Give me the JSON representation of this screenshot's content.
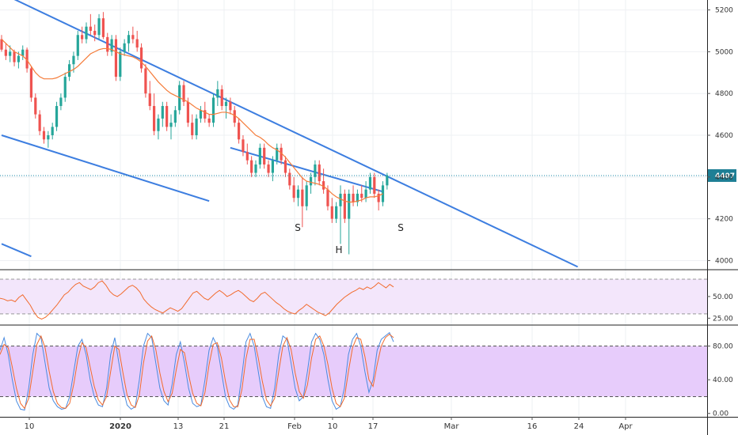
{
  "colors": {
    "up": "#26a69a",
    "down": "#ef5350",
    "trendline": "#3d7ee0",
    "ma": "#f57c3a",
    "rsi_line": "#f26b2d",
    "rsi_band": "#f3e6fb",
    "stoch_band": "#e7ccfb",
    "stoch_k": "#4a8be0",
    "stoch_d": "#f26b2d",
    "price_line": "#1a8aa8",
    "price_label_bg": "#1e7f95",
    "grid": "#eef0f3",
    "axis": "#555555"
  },
  "chart_data": [
    {
      "type": "candlestick",
      "title": "",
      "y_ticks": [
        "5200",
        "5000",
        "4800",
        "4600",
        "4400",
        "4200",
        "4000"
      ],
      "ylim": [
        3960,
        5240
      ],
      "last_price_label": "4407",
      "last_price": 4407,
      "x_ticks": [
        "10",
        "2020",
        "13",
        "21",
        "Feb",
        "10",
        "17",
        "Mar",
        "16",
        "24",
        "Apr"
      ],
      "bold_x_ticks": [
        "2020"
      ],
      "grid": true,
      "annotations": [
        "S",
        "H",
        "S"
      ],
      "candles": [
        [
          5060,
          5080,
          5000,
          5010
        ],
        [
          5010,
          5040,
          4960,
          4980
        ],
        [
          4980,
          5030,
          4950,
          5000
        ],
        [
          5000,
          5010,
          4930,
          4950
        ],
        [
          4950,
          5000,
          4920,
          4980
        ],
        [
          4980,
          5030,
          4960,
          5010
        ],
        [
          5010,
          5020,
          4900,
          4920
        ],
        [
          4920,
          4930,
          4760,
          4780
        ],
        [
          4780,
          4800,
          4680,
          4700
        ],
        [
          4700,
          4720,
          4600,
          4620
        ],
        [
          4620,
          4640,
          4560,
          4580
        ],
        [
          4580,
          4620,
          4540,
          4600
        ],
        [
          4600,
          4660,
          4580,
          4640
        ],
        [
          4640,
          4760,
          4620,
          4740
        ],
        [
          4740,
          4800,
          4720,
          4780
        ],
        [
          4780,
          4900,
          4760,
          4880
        ],
        [
          4880,
          4960,
          4860,
          4940
        ],
        [
          4940,
          5000,
          4900,
          4980
        ],
        [
          4980,
          5100,
          4960,
          5080
        ],
        [
          5080,
          5120,
          5040,
          5060
        ],
        [
          5060,
          5140,
          5040,
          5120
        ],
        [
          5120,
          5180,
          5080,
          5100
        ],
        [
          5100,
          5130,
          5050,
          5080
        ],
        [
          5080,
          5180,
          5060,
          5160
        ],
        [
          5160,
          5190,
          5060,
          5070
        ],
        [
          5070,
          5090,
          4980,
          5000
        ],
        [
          5000,
          5080,
          4980,
          5060
        ],
        [
          5060,
          5080,
          4860,
          4880
        ],
        [
          4880,
          5020,
          4860,
          5000
        ],
        [
          5000,
          5060,
          4980,
          5040
        ],
        [
          5040,
          5100,
          5000,
          5080
        ],
        [
          5080,
          5120,
          5040,
          5060
        ],
        [
          5060,
          5100,
          5000,
          5020
        ],
        [
          5020,
          5040,
          4900,
          4920
        ],
        [
          4920,
          4940,
          4780,
          4800
        ],
        [
          4800,
          4860,
          4720,
          4740
        ],
        [
          4740,
          4800,
          4600,
          4620
        ],
        [
          4620,
          4700,
          4580,
          4680
        ],
        [
          4680,
          4760,
          4640,
          4740
        ],
        [
          4740,
          4760,
          4620,
          4640
        ],
        [
          4640,
          4700,
          4580,
          4660
        ],
        [
          4660,
          4740,
          4640,
          4720
        ],
        [
          4720,
          4860,
          4700,
          4840
        ],
        [
          4840,
          4860,
          4740,
          4760
        ],
        [
          4760,
          4780,
          4640,
          4660
        ],
        [
          4660,
          4700,
          4580,
          4600
        ],
        [
          4600,
          4700,
          4580,
          4680
        ],
        [
          4680,
          4740,
          4660,
          4720
        ],
        [
          4720,
          4760,
          4660,
          4680
        ],
        [
          4680,
          4700,
          4640,
          4660
        ],
        [
          4660,
          4800,
          4640,
          4780
        ],
        [
          4780,
          4860,
          4740,
          4820
        ],
        [
          4820,
          4840,
          4720,
          4740
        ],
        [
          4740,
          4780,
          4680,
          4760
        ],
        [
          4760,
          4780,
          4700,
          4720
        ],
        [
          4720,
          4740,
          4640,
          4660
        ],
        [
          4660,
          4680,
          4560,
          4580
        ],
        [
          4580,
          4600,
          4500,
          4520
        ],
        [
          4520,
          4560,
          4460,
          4480
        ],
        [
          4480,
          4500,
          4400,
          4420
        ],
        [
          4420,
          4480,
          4400,
          4460
        ],
        [
          4460,
          4560,
          4440,
          4540
        ],
        [
          4540,
          4560,
          4440,
          4460
        ],
        [
          4460,
          4480,
          4400,
          4420
        ],
        [
          4420,
          4500,
          4380,
          4480
        ],
        [
          4480,
          4560,
          4460,
          4540
        ],
        [
          4540,
          4560,
          4460,
          4480
        ],
        [
          4480,
          4500,
          4400,
          4420
        ],
        [
          4420,
          4440,
          4340,
          4360
        ],
        [
          4360,
          4400,
          4280,
          4300
        ],
        [
          4300,
          4360,
          4260,
          4340
        ],
        [
          4340,
          4400,
          4160,
          4260
        ],
        [
          4260,
          4380,
          4240,
          4360
        ],
        [
          4360,
          4420,
          4320,
          4400
        ],
        [
          4400,
          4480,
          4360,
          4460
        ],
        [
          4460,
          4480,
          4360,
          4380
        ],
        [
          4380,
          4440,
          4320,
          4340
        ],
        [
          4340,
          4360,
          4240,
          4260
        ],
        [
          4260,
          4300,
          4180,
          4200
        ],
        [
          4200,
          4280,
          4180,
          4260
        ],
        [
          4260,
          4360,
          4080,
          4320
        ],
        [
          4320,
          4340,
          4180,
          4200
        ],
        [
          4200,
          4340,
          4030,
          4320
        ],
        [
          4320,
          4360,
          4260,
          4280
        ],
        [
          4280,
          4340,
          4260,
          4320
        ],
        [
          4320,
          4360,
          4280,
          4300
        ],
        [
          4300,
          4380,
          4280,
          4340
        ],
        [
          4340,
          4420,
          4320,
          4400
        ],
        [
          4400,
          4420,
          4300,
          4320
        ],
        [
          4320,
          4340,
          4240,
          4280
        ],
        [
          4280,
          4380,
          4260,
          4360
        ],
        [
          4360,
          4420,
          4340,
          4407
        ]
      ],
      "moving_average": [
        5060,
        5040,
        5020,
        5000,
        4990,
        4980,
        4960,
        4930,
        4900,
        4880,
        4870,
        4870,
        4870,
        4875,
        4885,
        4895,
        4905,
        4915,
        4930,
        4950,
        4970,
        4990,
        5000,
        5010,
        5015,
        5015,
        5010,
        5000,
        4990,
        4985,
        4980,
        4975,
        4965,
        4950,
        4930,
        4905,
        4880,
        4855,
        4835,
        4815,
        4800,
        4790,
        4780,
        4770,
        4760,
        4745,
        4730,
        4720,
        4710,
        4700,
        4700,
        4705,
        4710,
        4710,
        4705,
        4695,
        4680,
        4660,
        4640,
        4620,
        4600,
        4590,
        4575,
        4555,
        4540,
        4530,
        4515,
        4495,
        4470,
        4445,
        4420,
        4395,
        4380,
        4375,
        4370,
        4365,
        4355,
        4340,
        4320,
        4305,
        4295,
        4285,
        4280,
        4280,
        4285,
        4290,
        4300,
        4305,
        4305,
        4310,
        4320
      ],
      "trendlines": [
        {
          "from": [
            0,
            5280
          ],
          "to": [
            136,
            3970
          ]
        },
        {
          "from": [
            0,
            4600
          ],
          "to": [
            49,
            4285
          ]
        },
        {
          "from": [
            54,
            4540
          ],
          "to": [
            90,
            4330
          ]
        },
        {
          "from": [
            0,
            4080
          ],
          "to": [
            7,
            4020
          ]
        }
      ]
    },
    {
      "type": "line",
      "title": "",
      "y_ticks": [
        "50.00",
        "25.00"
      ],
      "ylim": [
        18,
        80
      ],
      "band": [
        30,
        70
      ],
      "series": [
        {
          "values": [
            48,
            47,
            45,
            46,
            44,
            49,
            52,
            46,
            40,
            32,
            26,
            24,
            26,
            30,
            35,
            40,
            46,
            52,
            55,
            60,
            64,
            66,
            62,
            60,
            58,
            61,
            66,
            68,
            63,
            56,
            52,
            50,
            53,
            57,
            61,
            63,
            60,
            55,
            47,
            42,
            38,
            35,
            33,
            31,
            34,
            37,
            35,
            33,
            36,
            42,
            48,
            54,
            56,
            52,
            48,
            46,
            50,
            54,
            57,
            54,
            50,
            52,
            55,
            57,
            54,
            50,
            46,
            44,
            48,
            53,
            55,
            51,
            47,
            43,
            40,
            36,
            33,
            31,
            30,
            34,
            37,
            41,
            38,
            35,
            32,
            30,
            28,
            31,
            36,
            41,
            45,
            49,
            52,
            55,
            57,
            60,
            58,
            61,
            59,
            62,
            66,
            63,
            60,
            64,
            61
          ]
        }
      ]
    },
    {
      "type": "line",
      "title": "",
      "y_ticks": [
        "80.00",
        "40.00",
        "0.00"
      ],
      "ylim": [
        -4,
        104
      ],
      "band": [
        20,
        80
      ],
      "series": [
        {
          "values": [
            75,
            90,
            70,
            40,
            15,
            5,
            4,
            30,
            70,
            95,
            90,
            60,
            30,
            15,
            8,
            5,
            6,
            20,
            50,
            80,
            88,
            70,
            40,
            20,
            10,
            8,
            30,
            70,
            90,
            60,
            30,
            10,
            5,
            8,
            40,
            80,
            95,
            90,
            60,
            30,
            15,
            10,
            35,
            70,
            85,
            60,
            30,
            12,
            8,
            10,
            40,
            75,
            90,
            80,
            50,
            20,
            8,
            5,
            10,
            45,
            85,
            95,
            80,
            50,
            20,
            8,
            6,
            30,
            70,
            92,
            88,
            60,
            30,
            15,
            20,
            50,
            85,
            95,
            88,
            70,
            40,
            15,
            5,
            8,
            30,
            70,
            88,
            95,
            80,
            50,
            25,
            40,
            75,
            88,
            92,
            96,
            85
          ]
        },
        {
          "values": [
            70,
            82,
            78,
            55,
            30,
            12,
            6,
            18,
            50,
            82,
            92,
            78,
            50,
            26,
            12,
            7,
            6,
            12,
            35,
            65,
            84,
            78,
            55,
            32,
            16,
            10,
            20,
            50,
            80,
            76,
            48,
            22,
            10,
            7,
            22,
            60,
            86,
            92,
            76,
            48,
            26,
            14,
            24,
            52,
            76,
            72,
            46,
            24,
            12,
            9,
            25,
            58,
            82,
            84,
            66,
            38,
            16,
            8,
            8,
            28,
            65,
            88,
            88,
            66,
            38,
            16,
            9,
            18,
            50,
            80,
            90,
            76,
            48,
            26,
            18,
            34,
            66,
            88,
            92,
            80,
            58,
            30,
            12,
            8,
            18,
            50,
            78,
            90,
            88,
            68,
            40,
            32,
            58,
            80,
            90,
            94,
            90
          ]
        }
      ]
    }
  ]
}
